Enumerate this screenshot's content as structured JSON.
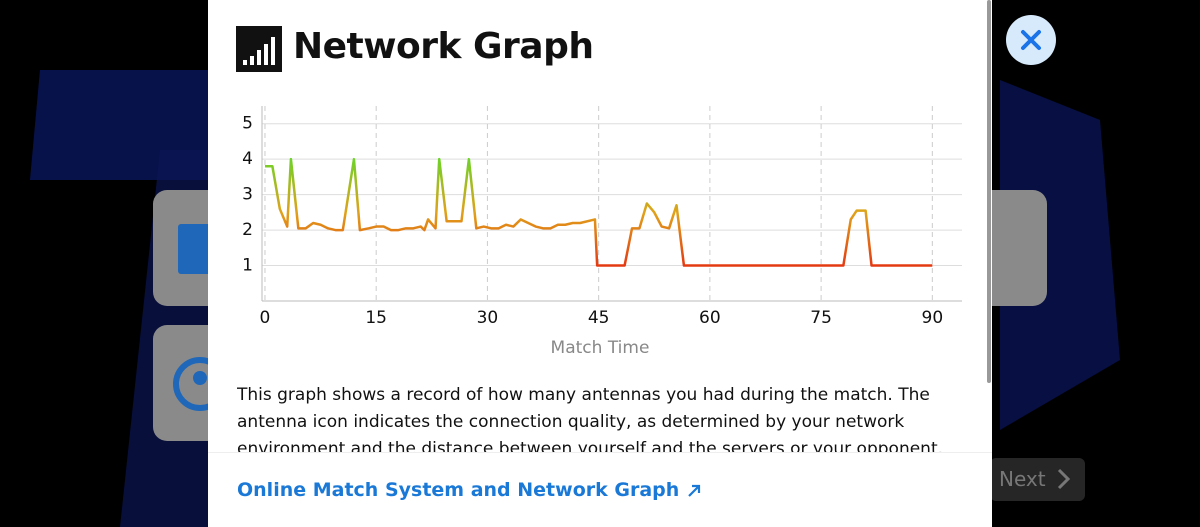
{
  "title": "Network Graph",
  "chart_data": {
    "type": "line",
    "xlabel": "Match Time",
    "x": [
      0,
      1,
      2,
      3,
      3.5,
      4.5,
      5.5,
      6.5,
      7.5,
      8.5,
      9.5,
      10.5,
      12,
      12.8,
      14,
      15,
      16,
      17,
      18,
      19,
      20,
      21,
      21.5,
      22,
      23,
      23.5,
      24.5,
      25.5,
      26.5,
      27.5,
      28.5,
      29.5,
      30.5,
      31.5,
      32.5,
      33.5,
      34.5,
      35.5,
      36.5,
      37.5,
      38.5,
      39.5,
      40.5,
      41.5,
      42.5,
      44.5,
      44.8,
      48.5,
      49.5,
      50.5,
      51.5,
      52.5,
      53.5,
      54.5,
      55.5,
      56.5,
      78,
      79,
      79.8,
      81,
      81.8,
      90
    ],
    "values": [
      3.8,
      3.8,
      2.6,
      2.1,
      4.0,
      2.05,
      2.05,
      2.2,
      2.15,
      2.05,
      2.0,
      2.0,
      4.0,
      2.0,
      2.05,
      2.1,
      2.1,
      2.0,
      2.0,
      2.05,
      2.05,
      2.1,
      2.0,
      2.3,
      2.05,
      4.0,
      2.25,
      2.25,
      2.25,
      4.0,
      2.05,
      2.1,
      2.05,
      2.05,
      2.15,
      2.1,
      2.3,
      2.2,
      2.1,
      2.05,
      2.05,
      2.15,
      2.15,
      2.2,
      2.2,
      2.3,
      1.0,
      1.0,
      2.05,
      2.05,
      2.75,
      2.5,
      2.1,
      2.05,
      2.7,
      1.0,
      1.0,
      2.3,
      2.55,
      2.55,
      1.0,
      1.0
    ],
    "colors": [
      "#6fd22a",
      "#e0a21a",
      "#e43a12"
    ],
    "xlim": [
      -0.4,
      94
    ],
    "xticks": [
      0,
      15,
      30,
      45,
      60,
      75,
      90
    ],
    "ylim": [
      0,
      5.5
    ],
    "yticks": [
      1,
      2,
      3,
      4,
      5
    ],
    "grid": true
  },
  "description": "This graph shows a record of how many antennas you had during the match. The antenna icon indicates the connection quality, as determined by your network environment and the distance between yourself and the servers or your opponent.",
  "link": "Online Match System and Network Graph",
  "next_button": "Next"
}
